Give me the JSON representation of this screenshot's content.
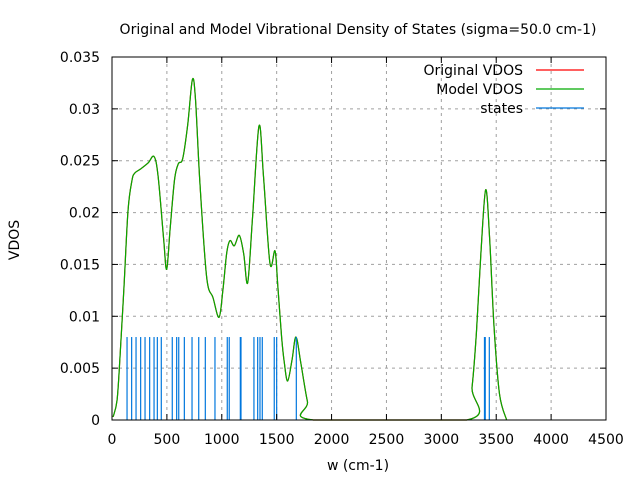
{
  "chart_data": {
    "type": "line",
    "title": "Original and Model Vibrational Density of States (sigma=50.0 cm-1)",
    "xlabel": "w (cm-1)",
    "ylabel": "VDOS",
    "xlim": [
      0,
      4500
    ],
    "ylim": [
      0,
      0.035
    ],
    "xticks": [
      0,
      500,
      1000,
      1500,
      2000,
      2500,
      3000,
      3500,
      4000,
      4500
    ],
    "xtick_labels": [
      "0",
      "500",
      "1000",
      "1500",
      "2000",
      "2500",
      "3000",
      "3500",
      "4000",
      "4500"
    ],
    "yticks": [
      0,
      0.005,
      0.01,
      0.015,
      0.02,
      0.025,
      0.03,
      0.035
    ],
    "ytick_labels": [
      "0",
      "0.005",
      "0.01",
      "0.015",
      "0.02",
      "0.025",
      "0.03",
      "0.035"
    ],
    "grid": true,
    "legend_position": "top-right",
    "series": [
      {
        "name": "Original VDOS",
        "color": "#ff0000",
        "kind": "line",
        "x": [
          10,
          46,
          73,
          109,
          146,
          182,
          207,
          260,
          330,
          383,
          420,
          470,
          498,
          530,
          570,
          604,
          644,
          690,
          732,
          760,
          800,
          862,
          920,
          975,
          1010,
          1045,
          1075,
          1114,
          1160,
          1200,
          1236,
          1280,
          1339,
          1380,
          1439,
          1485,
          1510,
          1545,
          1570,
          1600,
          1640,
          1676,
          1720,
          1780,
          1834,
          3231,
          3280,
          3320,
          3360,
          3404,
          3440,
          3480,
          3530,
          3595
        ],
        "y": [
          0.0003,
          0.0019,
          0.0061,
          0.0128,
          0.0202,
          0.0231,
          0.0238,
          0.0242,
          0.0248,
          0.0254,
          0.0235,
          0.0175,
          0.01453,
          0.0185,
          0.0232,
          0.0247,
          0.0252,
          0.0285,
          0.0328,
          0.031,
          0.023,
          0.0138,
          0.0118,
          0.0099,
          0.0125,
          0.0161,
          0.0173,
          0.0168,
          0.0178,
          0.016,
          0.01324,
          0.0195,
          0.02835,
          0.0235,
          0.0151,
          0.0163,
          0.013,
          0.008,
          0.0055,
          0.00376,
          0.0058,
          0.008,
          0.0055,
          0.0018,
          0.0,
          0.0,
          0.0032,
          0.0085,
          0.016,
          0.0222,
          0.0175,
          0.009,
          0.0025,
          0.0
        ]
      },
      {
        "name": "Model VDOS",
        "color": "#00aa00",
        "kind": "line",
        "x": [
          10,
          46,
          73,
          109,
          146,
          182,
          207,
          260,
          330,
          383,
          420,
          470,
          498,
          530,
          570,
          604,
          644,
          690,
          732,
          760,
          800,
          862,
          920,
          975,
          1010,
          1045,
          1075,
          1114,
          1160,
          1200,
          1236,
          1280,
          1339,
          1380,
          1439,
          1485,
          1510,
          1545,
          1570,
          1600,
          1640,
          1676,
          1720,
          1780,
          1834,
          3231,
          3280,
          3320,
          3360,
          3404,
          3440,
          3480,
          3530,
          3595
        ],
        "y": [
          0.0003,
          0.0019,
          0.0061,
          0.0128,
          0.0202,
          0.0231,
          0.0238,
          0.0242,
          0.0248,
          0.0254,
          0.0235,
          0.0175,
          0.01453,
          0.0185,
          0.0232,
          0.0247,
          0.0252,
          0.0285,
          0.0328,
          0.031,
          0.023,
          0.0138,
          0.0118,
          0.0099,
          0.0125,
          0.0161,
          0.0173,
          0.0168,
          0.0178,
          0.016,
          0.01324,
          0.0195,
          0.02835,
          0.0235,
          0.0151,
          0.0163,
          0.013,
          0.008,
          0.0055,
          0.00376,
          0.0058,
          0.008,
          0.0055,
          0.0018,
          0.0,
          0.0,
          0.0032,
          0.0085,
          0.016,
          0.0222,
          0.0175,
          0.009,
          0.0025,
          0.0
        ]
      },
      {
        "name": "states",
        "color": "#0077dd",
        "kind": "impulses",
        "height": 0.008,
        "x": [
          137,
          179,
          219,
          261,
          301,
          343,
          383,
          413,
          449,
          549,
          589,
          608,
          659,
          729,
          790,
          850,
          938,
          1050,
          1068,
          1169,
          1175,
          1293,
          1327,
          1348,
          1369,
          1478,
          1500,
          1679,
          3393,
          3400,
          3437
        ]
      }
    ]
  }
}
